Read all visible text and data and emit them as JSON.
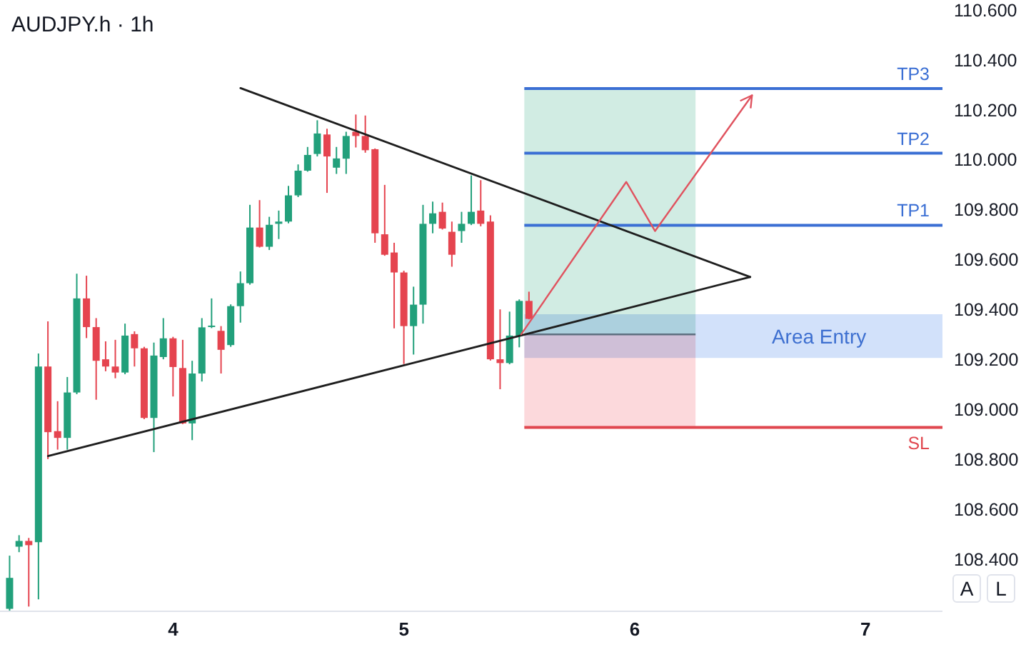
{
  "chart_data": {
    "type": "candlestick",
    "title": "AUDJPY.h · 1h",
    "x": [
      3.292,
      3.333,
      3.375,
      3.417,
      3.458,
      3.5,
      3.542,
      3.583,
      3.625,
      3.667,
      3.708,
      3.75,
      3.792,
      3.833,
      3.875,
      3.917,
      3.958,
      4,
      4.042,
      4.083,
      4.125,
      4.167,
      4.208,
      4.25,
      4.292,
      4.333,
      4.375,
      4.417,
      4.458,
      4.5,
      4.542,
      4.583,
      4.625,
      4.667,
      4.708,
      4.75,
      4.792,
      4.833,
      4.875,
      4.917,
      4.958,
      5,
      5.042,
      5.083,
      5.125,
      5.167,
      5.208,
      5.25,
      5.292,
      5.333,
      5.375,
      5.417,
      5.458,
      5.5,
      5.542
    ],
    "ohlc": [
      [
        108.2,
        108.413,
        108.19,
        108.324
      ],
      [
        108.449,
        108.495,
        108.427,
        108.472
      ],
      [
        108.472,
        108.484,
        108.209,
        108.455
      ],
      [
        108.467,
        109.223,
        108.238,
        109.171
      ],
      [
        109.171,
        109.352,
        108.8,
        108.908
      ],
      [
        108.912,
        109.032,
        108.838,
        108.885
      ],
      [
        108.885,
        109.129,
        108.838,
        109.067
      ],
      [
        109.067,
        109.543,
        109.06,
        109.444
      ],
      [
        109.444,
        109.535,
        109.285,
        109.329
      ],
      [
        109.329,
        109.365,
        109.038,
        109.194
      ],
      [
        109.2,
        109.272,
        109.152,
        109.171
      ],
      [
        109.171,
        109.278,
        109.124,
        109.147
      ],
      [
        109.147,
        109.343,
        109.14,
        109.295
      ],
      [
        109.301,
        109.312,
        109.171,
        109.244
      ],
      [
        109.244,
        109.25,
        108.96,
        108.965
      ],
      [
        108.965,
        109.267,
        108.828,
        109.215
      ],
      [
        109.209,
        109.365,
        109.2,
        109.284
      ],
      [
        109.284,
        109.29,
        109.051,
        109.169
      ],
      [
        109.165,
        109.278,
        108.94,
        108.943
      ],
      [
        108.943,
        109.194,
        108.876,
        109.143
      ],
      [
        109.143,
        109.365,
        109.111,
        109.328
      ],
      [
        109.331,
        109.444,
        109.325,
        109.335
      ],
      [
        109.314,
        109.333,
        109.143,
        109.238
      ],
      [
        109.257,
        109.42,
        109.25,
        109.413
      ],
      [
        109.413,
        109.552,
        109.347,
        109.505
      ],
      [
        109.505,
        109.819,
        109.499,
        109.728
      ],
      [
        109.728,
        109.838,
        109.648,
        109.651
      ],
      [
        109.651,
        109.771,
        109.638,
        109.739
      ],
      [
        109.743,
        109.796,
        109.682,
        109.752
      ],
      [
        109.752,
        109.895,
        109.745,
        109.857
      ],
      [
        109.857,
        109.981,
        109.85,
        109.956
      ],
      [
        109.956,
        110.051,
        109.952,
        110.019
      ],
      [
        110.023,
        110.158,
        110.013,
        110.105
      ],
      [
        110.101,
        110.124,
        109.867,
        110.013
      ],
      [
        109.968,
        110.051,
        109.943,
        110.005
      ],
      [
        110.004,
        110.112,
        109.943,
        110.095
      ],
      [
        110.112,
        110.181,
        110.049,
        110.095
      ],
      [
        110.095,
        110.177,
        110.028,
        110.038
      ],
      [
        110.042,
        110.045,
        109.667,
        109.705
      ],
      [
        109.701,
        109.899,
        109.615,
        109.619
      ],
      [
        109.628,
        109.667,
        109.324,
        109.548
      ],
      [
        109.548,
        109.555,
        109.181,
        109.333
      ],
      [
        109.333,
        109.491,
        109.219,
        109.419
      ],
      [
        109.419,
        109.819,
        109.343,
        109.743
      ],
      [
        109.743,
        109.832,
        109.705,
        109.785
      ],
      [
        109.791,
        109.828,
        109.72,
        109.724
      ],
      [
        109.711,
        109.752,
        109.571,
        109.619
      ],
      [
        109.714,
        109.791,
        109.667,
        109.743
      ],
      [
        109.743,
        109.937,
        109.738,
        109.791
      ],
      [
        109.796,
        109.918,
        109.733,
        109.743
      ],
      [
        109.752,
        109.777,
        109.195,
        109.2
      ],
      [
        109.2,
        109.4,
        109.08,
        109.185
      ],
      [
        109.185,
        109.391,
        109.18,
        109.295
      ],
      [
        109.295,
        109.44,
        109.248,
        109.434
      ],
      [
        109.434,
        109.471,
        109.36,
        109.362
      ]
    ],
    "colors": [
      "#22a07b",
      "#22a07b",
      "#e5444f",
      "#22a07b",
      "#e5444f",
      "#e5444f",
      "#22a07b",
      "#22a07b",
      "#e5444f",
      "#e5444f",
      "#e5444f",
      "#e5444f",
      "#22a07b",
      "#e5444f",
      "#e5444f",
      "#22a07b",
      "#22a07b",
      "#e5444f",
      "#e5444f",
      "#22a07b",
      "#22a07b",
      "#22a07b",
      "#e5444f",
      "#22a07b",
      "#22a07b",
      "#22a07b",
      "#e5444f",
      "#22a07b",
      "#22a07b",
      "#22a07b",
      "#22a07b",
      "#22a07b",
      "#22a07b",
      "#e5444f",
      "#22a07b",
      "#22a07b",
      "#e5444f",
      "#e5444f",
      "#e5444f",
      "#e5444f",
      "#e5444f",
      "#e5444f",
      "#22a07b",
      "#22a07b",
      "#22a07b",
      "#e5444f",
      "#e5444f",
      "#22a07b",
      "#22a07b",
      "#e5444f",
      "#e5444f",
      "#e5444f",
      "#22a07b",
      "#22a07b",
      "#e5444f"
    ],
    "xlim": [
      3.25,
      7.333
    ],
    "xticks": [
      4,
      5,
      6,
      7
    ],
    "ylim": [
      108.19,
      110.64
    ],
    "yticks": [
      {
        "value": 110.6,
        "label": "110.600"
      },
      {
        "value": 110.4,
        "label": "110.400"
      },
      {
        "value": 110.2,
        "label": "110.200"
      },
      {
        "value": 110.0,
        "label": "110.000"
      },
      {
        "value": 109.8,
        "label": "109.800"
      },
      {
        "value": 109.6,
        "label": "109.600"
      },
      {
        "value": 109.4,
        "label": "109.400"
      },
      {
        "value": 109.2,
        "label": "109.200"
      },
      {
        "value": 109.0,
        "label": "109.000"
      },
      {
        "value": 108.8,
        "label": "108.800"
      },
      {
        "value": 108.6,
        "label": "108.600"
      },
      {
        "value": 108.4,
        "label": "108.400"
      }
    ],
    "series": [
      {
        "type": "line",
        "x": [
          4.292,
          6.5
        ],
        "values": [
          110.287,
          109.53
        ],
        "color": "#1e1e1e"
      },
      {
        "type": "line",
        "x": [
          3.458,
          6.5
        ],
        "values": [
          108.812,
          109.53
        ],
        "color": "#1e1e1e"
      },
      {
        "type": "line",
        "x": [
          5.508,
          5.963,
          6.088,
          6.508
        ],
        "values": [
          109.3,
          109.911,
          109.714,
          110.258
        ],
        "color": "#e0535f"
      }
    ],
    "marker": "none",
    "bands": [
      {
        "axis": "y",
        "from": 109.3,
        "to": 110.285,
        "color": "#d1ece3"
      },
      {
        "axis": "y",
        "from": 108.927,
        "to": 109.3,
        "color": "#fcd9dc"
      },
      {
        "axis": "y",
        "from": 109.205,
        "to": 109.381,
        "label": "Area Entry",
        "color": "#d2e1fa"
      }
    ],
    "ref_lines": [
      {
        "axis": "y",
        "value": 110.285,
        "label": "TP3",
        "color": "#3b6fd4"
      },
      {
        "axis": "y",
        "value": 110.026,
        "label": "TP2",
        "color": "#3b6fd4"
      },
      {
        "axis": "y",
        "value": 109.737,
        "label": "TP1",
        "color": "#3b6fd4"
      },
      {
        "axis": "y",
        "value": 108.927,
        "label": "SL",
        "color": "#e0474f"
      },
      {
        "axis": "y",
        "value": 109.3,
        "color": "#5d6f80"
      }
    ],
    "annotations": [
      "A",
      "L"
    ]
  }
}
